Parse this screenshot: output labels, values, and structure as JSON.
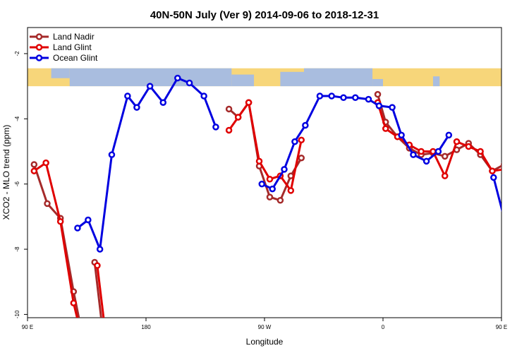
{
  "chart_data": {
    "type": "line",
    "title": "40N-50N July (Ver 9)   2014-09-06 to 2018-12-31",
    "xlabel": "Longitude",
    "ylabel": "XCO2 - MLO trend (ppm)",
    "xlim": [
      90,
      450
    ],
    "ylim": [
      -10.1,
      -1.2
    ],
    "x_ticks": [
      {
        "value": 90,
        "label": "90 E"
      },
      {
        "value": 180,
        "label": "180"
      },
      {
        "value": 270,
        "label": "90 W"
      },
      {
        "value": 360,
        "label": "0"
      },
      {
        "value": 450,
        "label": "90 E"
      },
      {
        "value": 540,
        "label": "180"
      }
    ],
    "y_ticks": [
      {
        "value": -10,
        "label": "-10"
      },
      {
        "value": -8,
        "label": "-8"
      },
      {
        "value": -6,
        "label": "-6"
      },
      {
        "value": -4,
        "label": "-4"
      },
      {
        "value": -2,
        "label": "-2"
      }
    ],
    "legend_position": "top-left",
    "grid": false,
    "map_strip": {
      "y_top": -2.45,
      "y_bottom": -3.0,
      "land_color": "#f7d67a",
      "ocean_color": "#a9bddf"
    },
    "series": [
      {
        "name": "Land Nadir",
        "color": "#a52a2a",
        "segments": [
          [
            [
              95,
              -5.4
            ],
            [
              105,
              -6.6
            ],
            [
              115,
              -7.05
            ],
            [
              125,
              -9.3
            ],
            [
              136,
              -11.5
            ]
          ],
          [
            [
              141,
              -8.4
            ],
            [
              150,
              -11.5
            ]
          ],
          [
            [
              243,
              -3.7
            ],
            [
              250,
              -3.95
            ],
            [
              258,
              -3.5
            ],
            [
              266,
              -5.45
            ],
            [
              274,
              -6.4
            ],
            [
              282,
              -6.5
            ],
            [
              290,
              -5.75
            ],
            [
              298,
              -5.2
            ]
          ],
          [
            [
              356,
              -3.25
            ],
            [
              362,
              -4.1
            ],
            [
              371,
              -4.55
            ],
            [
              380,
              -4.9
            ],
            [
              389,
              -5.1
            ],
            [
              398,
              -5.05
            ],
            [
              407,
              -5.15
            ],
            [
              416,
              -4.95
            ],
            [
              425,
              -4.75
            ],
            [
              434,
              -5.1
            ],
            [
              443,
              -5.6
            ],
            [
              452,
              -5.4
            ],
            [
              461,
              -6.6
            ],
            [
              470,
              -7.05
            ],
            [
              479,
              -9.3
            ],
            [
              489,
              -11.5
            ]
          ],
          [
            [
              495,
              -8.4
            ],
            [
              503,
              -11.5
            ]
          ]
        ]
      },
      {
        "name": "Land Glint",
        "color": "#e00000",
        "segments": [
          [
            [
              95,
              -5.6
            ],
            [
              104,
              -5.35
            ],
            [
              115,
              -7.15
            ],
            [
              125,
              -9.65
            ],
            [
              136,
              -11.5
            ]
          ],
          [
            [
              143,
              -8.5
            ],
            [
              152,
              -11.5
            ]
          ],
          [
            [
              243,
              -4.35
            ],
            [
              250,
              -3.95
            ],
            [
              258,
              -3.5
            ],
            [
              266,
              -5.3
            ],
            [
              274,
              -5.85
            ],
            [
              282,
              -5.75
            ],
            [
              290,
              -6.2
            ],
            [
              298,
              -4.65
            ]
          ],
          [
            [
              356,
              -3.5
            ],
            [
              362,
              -4.3
            ],
            [
              371,
              -4.55
            ],
            [
              380,
              -4.8
            ],
            [
              389,
              -5.0
            ],
            [
              398,
              -5.0
            ],
            [
              407,
              -5.75
            ],
            [
              416,
              -4.7
            ],
            [
              425,
              -4.85
            ],
            [
              434,
              -5.0
            ],
            [
              443,
              -5.6
            ],
            [
              452,
              -5.55
            ],
            [
              461,
              -5.35
            ],
            [
              470,
              -7.15
            ],
            [
              479,
              -9.65
            ],
            [
              489,
              -11.5
            ]
          ],
          [
            [
              495,
              -8.5
            ],
            [
              503,
              -11.5
            ]
          ]
        ]
      },
      {
        "name": "Ocean Glint",
        "color": "#0000e0",
        "segments": [
          [
            [
              128,
              -7.35
            ],
            [
              136,
              -7.1
            ],
            [
              145,
              -8.0
            ],
            [
              154,
              -5.1
            ],
            [
              166,
              -3.3
            ],
            [
              173,
              -3.65
            ],
            [
              183,
              -3.0
            ],
            [
              193,
              -3.5
            ],
            [
              204,
              -2.75
            ],
            [
              213,
              -2.9
            ],
            [
              224,
              -3.3
            ],
            [
              233,
              -4.25
            ]
          ],
          [
            [
              268,
              -6.0
            ],
            [
              276,
              -6.15
            ],
            [
              285,
              -5.55
            ],
            [
              293,
              -4.7
            ],
            [
              301,
              -4.2
            ],
            [
              312,
              -3.3
            ],
            [
              321,
              -3.3
            ],
            [
              330,
              -3.35
            ],
            [
              339,
              -3.35
            ],
            [
              349,
              -3.4
            ],
            [
              357,
              -3.6
            ],
            [
              367,
              -3.65
            ],
            [
              374,
              -4.5
            ],
            [
              383,
              -5.1
            ],
            [
              393,
              -5.3
            ],
            [
              402,
              -5.0
            ],
            [
              410,
              -4.5
            ]
          ],
          [
            [
              444,
              -5.8
            ],
            [
              453,
              -7.2
            ]
          ]
        ]
      }
    ]
  }
}
